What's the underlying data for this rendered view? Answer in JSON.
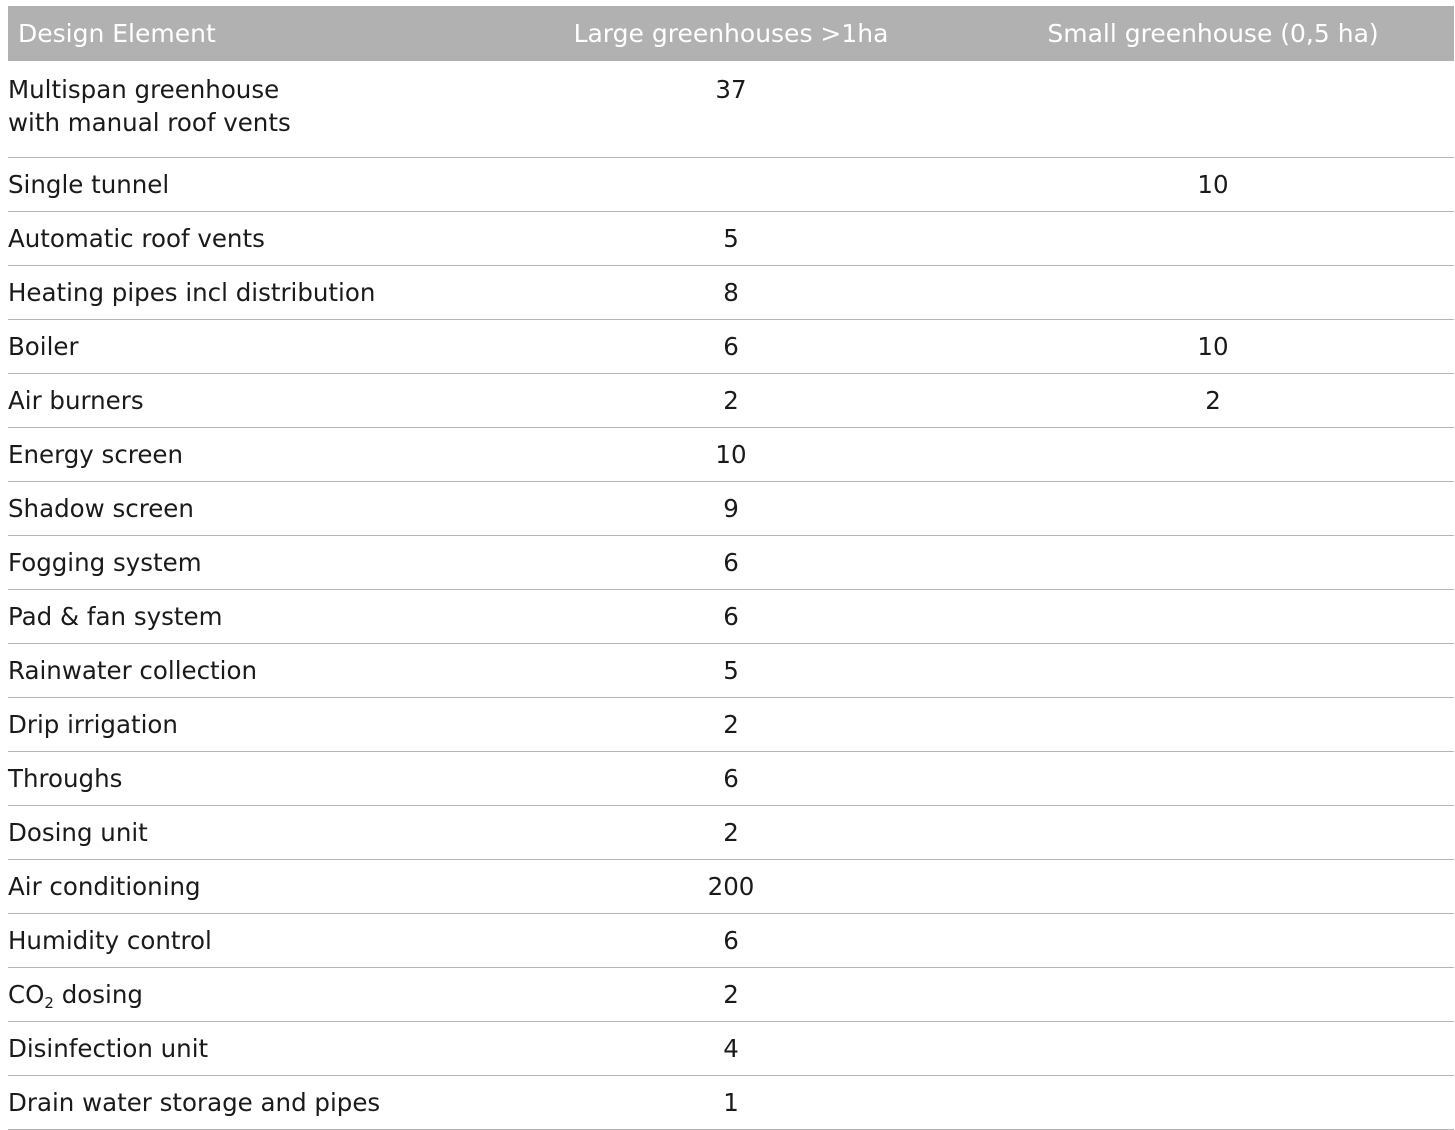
{
  "table": {
    "headers": [
      "Design Element",
      "Large greenhouses >1ha",
      "Small greenhouse (0,5 ha)"
    ],
    "rows": [
      {
        "element_line1": "Multispan greenhouse",
        "element_line2": "with manual roof vents",
        "large": "37",
        "small": ""
      },
      {
        "element": "Single tunnel",
        "large": "",
        "small": "10"
      },
      {
        "element": "Automatic roof vents",
        "large": "5",
        "small": ""
      },
      {
        "element": "Heating pipes incl distribution",
        "large": "8",
        "small": ""
      },
      {
        "element": "Boiler",
        "large": "6",
        "small": "10"
      },
      {
        "element": "Air burners",
        "large": "2",
        "small": "2"
      },
      {
        "element": "Energy screen",
        "large": "10",
        "small": ""
      },
      {
        "element": "Shadow screen",
        "large": "9",
        "small": ""
      },
      {
        "element": "Fogging system",
        "large": "6",
        "small": ""
      },
      {
        "element": "Pad & fan system",
        "large": "6",
        "small": ""
      },
      {
        "element": "Rainwater collection",
        "large": "5",
        "small": ""
      },
      {
        "element": "Drip irrigation",
        "large": "2",
        "small": ""
      },
      {
        "element": "Throughs",
        "large": "6",
        "small": ""
      },
      {
        "element": "Dosing unit",
        "large": "2",
        "small": ""
      },
      {
        "element": "Air conditioning",
        "large": "200",
        "small": ""
      },
      {
        "element": "Humidity control",
        "large": "6",
        "small": ""
      },
      {
        "element_main": "CO",
        "element_sub": "2",
        "element_rest": " dosing",
        "large": "2",
        "small": ""
      },
      {
        "element": "Disinfection unit",
        "large": "4",
        "small": ""
      },
      {
        "element": "Drain water storage and pipes",
        "large": "1",
        "small": ""
      }
    ]
  }
}
